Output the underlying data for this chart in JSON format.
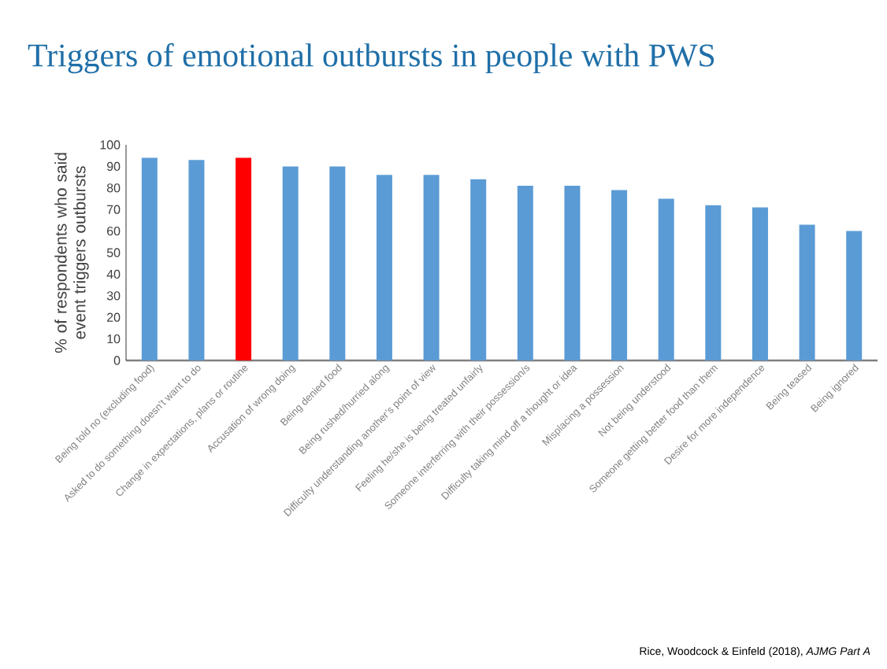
{
  "chart_data": {
    "type": "bar",
    "title": "Triggers of emotional outbursts in people with PWS",
    "ylabel": "% of respondents who said event triggers outbursts",
    "categories": [
      "Being told no (excluding food)",
      "Asked to do something doesn’t want to do",
      "Change in expectations, plans or routine",
      "Accusation of wrong doing",
      "Being denied food",
      "Being rushed/hurried along",
      "Difficulty understanding another’s point of view",
      "Feeling he/she is being treated unfairly",
      "Someone interferring with their possession/s",
      "Difficulty taking mind off a thought or idea",
      "Misplacing a possession",
      "Not being understood",
      "Someone getting better food than them",
      "Desire for more independence",
      "Being teased",
      "Being ignored"
    ],
    "values": [
      94,
      93,
      94,
      90,
      90,
      86,
      86,
      84,
      81,
      81,
      79,
      75,
      72,
      71,
      63,
      60
    ],
    "colors": [
      "#5b9bd5",
      "#5b9bd5",
      "#ff0000",
      "#5b9bd5",
      "#5b9bd5",
      "#5b9bd5",
      "#5b9bd5",
      "#5b9bd5",
      "#5b9bd5",
      "#5b9bd5",
      "#5b9bd5",
      "#5b9bd5",
      "#5b9bd5",
      "#5b9bd5",
      "#5b9bd5",
      "#5b9bd5"
    ],
    "ylim": [
      0,
      100
    ],
    "yticks": [
      0,
      10,
      20,
      30,
      40,
      50,
      60,
      70,
      80,
      90,
      100
    ],
    "annotations": [
      "Rice, Woodcock & Einfeld (2018), *AJMG Part A*"
    ]
  }
}
